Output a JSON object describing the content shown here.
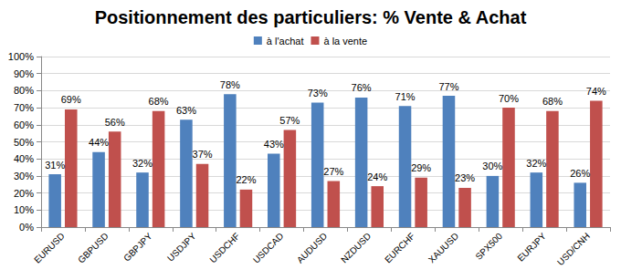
{
  "chart_data": {
    "type": "bar",
    "title": "Positionnement des particuliers: % Vente & Achat",
    "categories": [
      "EURUSD",
      "GBPUSD",
      "GBPJPY",
      "USDJPY",
      "USDCHF",
      "USDCAD",
      "AUDUSD",
      "NZDUSD",
      "EURCHF",
      "XAUUSD",
      "SPX500",
      "EURJPY",
      "USD/CNH"
    ],
    "series": [
      {
        "name": "à l'achat",
        "color": "#4F81BD",
        "values": [
          31,
          44,
          32,
          63,
          78,
          43,
          73,
          76,
          71,
          77,
          30,
          32,
          26
        ],
        "value_labels": [
          "31%",
          "44%",
          "32%",
          "63%",
          "78%",
          "43%",
          "73%",
          "76%",
          "71%",
          "77%",
          "30%",
          "32%",
          "26%"
        ]
      },
      {
        "name": "à la vente",
        "color": "#C0504D",
        "values": [
          69,
          56,
          68,
          37,
          22,
          57,
          27,
          24,
          29,
          23,
          70,
          68,
          74
        ],
        "value_labels": [
          "69%",
          "56%",
          "68%",
          "37%",
          "22%",
          "57%",
          "27%",
          "24%",
          "29%",
          "23%",
          "70%",
          "68%",
          "74%"
        ]
      }
    ],
    "ylim": [
      0,
      100
    ],
    "yticks": [
      {
        "value": 0,
        "label": "0%"
      },
      {
        "value": 10,
        "label": "10%"
      },
      {
        "value": 20,
        "label": "20%"
      },
      {
        "value": 30,
        "label": "30%"
      },
      {
        "value": 40,
        "label": "40%"
      },
      {
        "value": 50,
        "label": "50%"
      },
      {
        "value": 60,
        "label": "60%"
      },
      {
        "value": 70,
        "label": "70%"
      },
      {
        "value": 80,
        "label": "80%"
      },
      {
        "value": 90,
        "label": "90%"
      },
      {
        "value": 100,
        "label": "100%"
      }
    ],
    "grid": true,
    "legend": "top",
    "data_labels": true
  }
}
